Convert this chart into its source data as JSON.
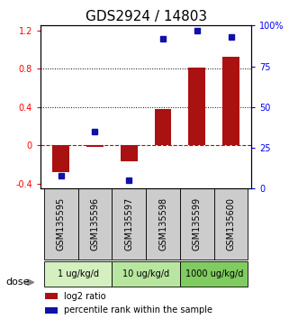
{
  "title": "GDS2924 / 14803",
  "samples": [
    "GSM135595",
    "GSM135596",
    "GSM135597",
    "GSM135598",
    "GSM135599",
    "GSM135600"
  ],
  "log2_ratio": [
    -0.28,
    -0.02,
    -0.17,
    0.38,
    0.81,
    0.92
  ],
  "percentile_rank": [
    8,
    35,
    5,
    92,
    97,
    93
  ],
  "dose_groups": [
    {
      "label": "1 ug/kg/d",
      "samples": [
        0,
        1
      ],
      "color": "#d4f0c0"
    },
    {
      "label": "10 ug/kg/d",
      "samples": [
        2,
        3
      ],
      "color": "#b8e6a0"
    },
    {
      "label": "1000 ug/kg/d",
      "samples": [
        4,
        5
      ],
      "color": "#80cc60"
    }
  ],
  "bar_color": "#aa1111",
  "dot_color": "#1111aa",
  "ylim_left": [
    -0.45,
    1.25
  ],
  "ylim_right": [
    0,
    100
  ],
  "yticks_left": [
    -0.4,
    0.0,
    0.4,
    0.8,
    1.2
  ],
  "yticks_right": [
    0,
    25,
    50,
    75,
    100
  ],
  "ytick_labels_left": [
    "-0.4",
    "0",
    "0.4",
    "0.8",
    "1.2"
  ],
  "ytick_labels_right": [
    "0",
    "25",
    "50",
    "75",
    "100%"
  ],
  "hlines": [
    0.4,
    0.8
  ],
  "zero_line": 0.0,
  "bar_width": 0.5,
  "legend_items": [
    {
      "color": "#aa1111",
      "label": "log2 ratio"
    },
    {
      "color": "#1111aa",
      "label": "percentile rank within the sample"
    }
  ],
  "dose_label": "dose",
  "sample_label_fontsize": 7,
  "title_fontsize": 11
}
